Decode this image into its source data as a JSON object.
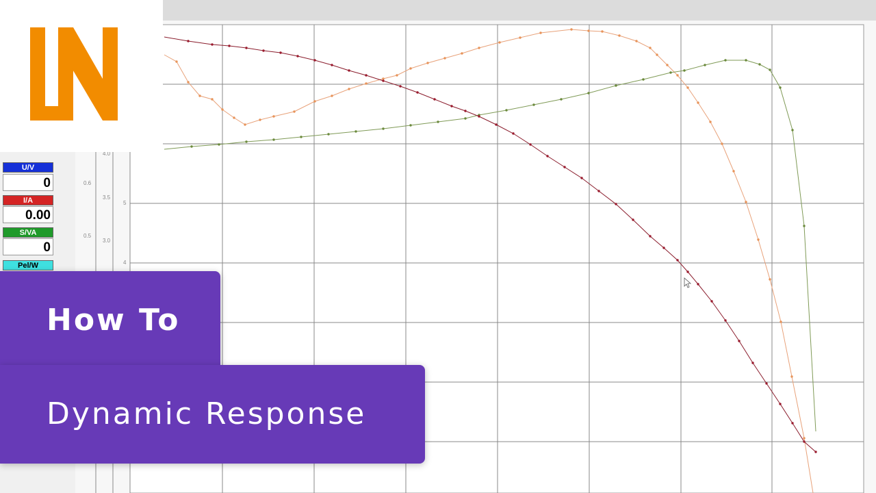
{
  "panel": {
    "meters": [
      {
        "label": "U/V",
        "value": "0"
      },
      {
        "label": "I/A",
        "value": "0.00"
      },
      {
        "label": "S/VA",
        "value": "0"
      },
      {
        "label": "Pel/W"
      }
    ]
  },
  "axes": {
    "labels": [
      "0.6",
      "0.5",
      "4.0",
      "3.5",
      "3.0",
      "5",
      "4"
    ]
  },
  "banner": {
    "kicker": "How To",
    "title": "Dynamic Response"
  }
}
